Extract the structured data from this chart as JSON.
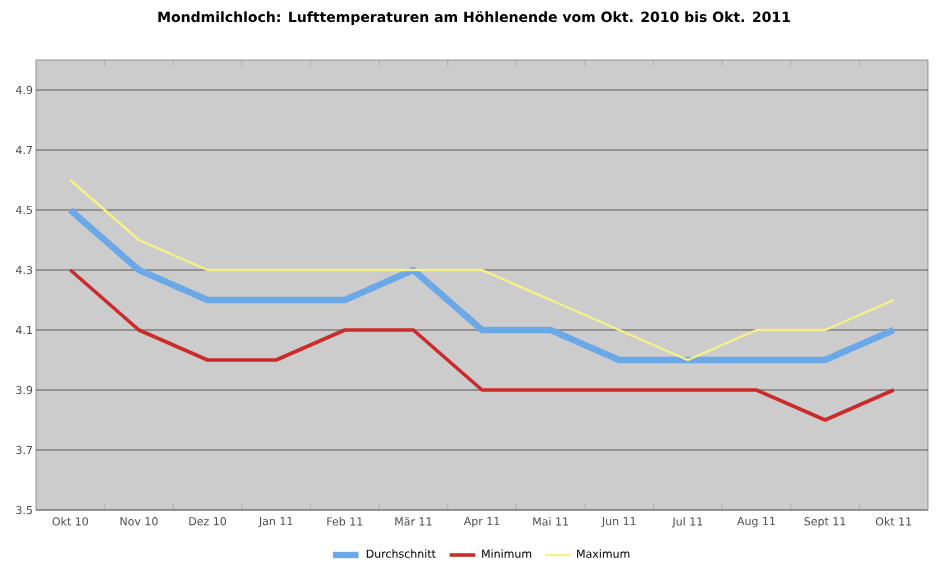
{
  "chart_data": {
    "type": "line",
    "title": "Mondmilchloch: Lufttemperaturen am Höhlenende vom Okt. 2010 bis Okt. 2011",
    "categories": [
      "Okt 10",
      "Nov 10",
      "Dez 10",
      "Jan 11",
      "Feb 11",
      "Mär 11",
      "Apr 11",
      "Mai 11",
      "Jun 11",
      "Jul 11",
      "Aug 11",
      "Sept 11",
      "Okt 11"
    ],
    "series": [
      {
        "name": "Durchschnitt",
        "color": "#6aa8e8",
        "values": [
          4.5,
          4.3,
          4.2,
          4.2,
          4.2,
          4.3,
          4.1,
          4.1,
          4.0,
          4.0,
          4.0,
          4.0,
          4.1
        ]
      },
      {
        "name": "Minimum",
        "color": "#cc2b2b",
        "values": [
          4.3,
          4.1,
          4.0,
          4.0,
          4.1,
          4.1,
          3.9,
          3.9,
          3.9,
          3.9,
          3.9,
          3.8,
          3.9
        ]
      },
      {
        "name": "Maximum",
        "color": "#f5f08a",
        "values": [
          4.6,
          4.4,
          4.3,
          4.3,
          4.3,
          4.3,
          4.3,
          4.2,
          4.1,
          4.0,
          4.1,
          4.1,
          4.2
        ]
      }
    ],
    "ylim": [
      3.5,
      5.0
    ],
    "yticks": [
      3.5,
      3.7,
      3.9,
      4.1,
      4.3,
      4.5,
      4.7,
      4.9
    ],
    "grid": "y",
    "legend": "bottom",
    "marker": "none",
    "line_style": "solid"
  }
}
